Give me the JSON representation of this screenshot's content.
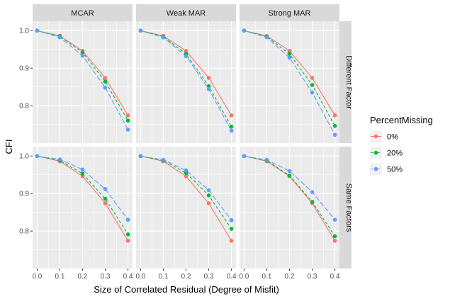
{
  "chart_data": {
    "type": "line",
    "facet_columns": [
      "MCAR",
      "Weak MAR",
      "Strong MAR"
    ],
    "facet_rows": [
      "Different Factor",
      "Same Factors"
    ],
    "xlabel": "Size of Correlated Residual (Degree of Misfit)",
    "ylabel": "CFI",
    "x": [
      0.0,
      0.1,
      0.2,
      0.3,
      0.4
    ],
    "x_ticks": [
      "0.0",
      "0.1",
      "0.2",
      "0.3",
      "0.4"
    ],
    "y_ticks": [
      "0.8",
      "0.9",
      "1.0"
    ],
    "y_tick_values": [
      0.8,
      0.9,
      1.0
    ],
    "xlim": [
      -0.02,
      0.42
    ],
    "ylim": [
      0.7,
      1.025
    ],
    "grid": true,
    "legend": {
      "title": "PercentMissing",
      "placement": "right",
      "entries": [
        "0%",
        "20%",
        "50%"
      ]
    },
    "series_styles": [
      {
        "color": "#F8766D",
        "dash": "solid"
      },
      {
        "color": "#00BA38",
        "dash": "dashed"
      },
      {
        "color": "#619CFF",
        "dash": "longdash"
      }
    ],
    "panels": [
      {
        "row": 0,
        "col": 0,
        "series": [
          {
            "name": "0%",
            "values": [
              1.0,
              0.986,
              0.946,
              0.874,
              0.774
            ]
          },
          {
            "name": "20%",
            "values": [
              1.0,
              0.985,
              0.942,
              0.864,
              0.76
            ]
          },
          {
            "name": "50%",
            "values": [
              1.0,
              0.982,
              0.933,
              0.848,
              0.736
            ]
          }
        ]
      },
      {
        "row": 0,
        "col": 1,
        "series": [
          {
            "name": "0%",
            "values": [
              1.0,
              0.986,
              0.946,
              0.874,
              0.774
            ]
          },
          {
            "name": "20%",
            "values": [
              1.0,
              0.984,
              0.938,
              0.852,
              0.744
            ]
          },
          {
            "name": "50%",
            "values": [
              1.0,
              0.982,
              0.932,
              0.844,
              0.733
            ]
          }
        ]
      },
      {
        "row": 0,
        "col": 2,
        "series": [
          {
            "name": "0%",
            "values": [
              1.0,
              0.986,
              0.946,
              0.874,
              0.774
            ]
          },
          {
            "name": "20%",
            "values": [
              1.0,
              0.984,
              0.938,
              0.855,
              0.746
            ]
          },
          {
            "name": "50%",
            "values": [
              1.0,
              0.982,
              0.928,
              0.835,
              0.722
            ]
          }
        ]
      },
      {
        "row": 1,
        "col": 0,
        "series": [
          {
            "name": "0%",
            "values": [
              1.0,
              0.986,
              0.946,
              0.874,
              0.774
            ]
          },
          {
            "name": "20%",
            "values": [
              1.0,
              0.988,
              0.953,
              0.886,
              0.791
            ]
          },
          {
            "name": "50%",
            "values": [
              1.0,
              0.991,
              0.964,
              0.912,
              0.83
            ]
          }
        ]
      },
      {
        "row": 1,
        "col": 1,
        "series": [
          {
            "name": "0%",
            "values": [
              1.0,
              0.986,
              0.946,
              0.874,
              0.774
            ]
          },
          {
            "name": "20%",
            "values": [
              1.0,
              0.988,
              0.955,
              0.895,
              0.806
            ]
          },
          {
            "name": "50%",
            "values": [
              1.0,
              0.99,
              0.962,
              0.909,
              0.829
            ]
          }
        ]
      },
      {
        "row": 1,
        "col": 2,
        "series": [
          {
            "name": "0%",
            "values": [
              1.0,
              0.986,
              0.946,
              0.874,
              0.774
            ]
          },
          {
            "name": "20%",
            "values": [
              1.0,
              0.988,
              0.948,
              0.878,
              0.786
            ]
          },
          {
            "name": "50%",
            "values": [
              1.0,
              0.99,
              0.96,
              0.904,
              0.83
            ]
          }
        ]
      }
    ]
  }
}
